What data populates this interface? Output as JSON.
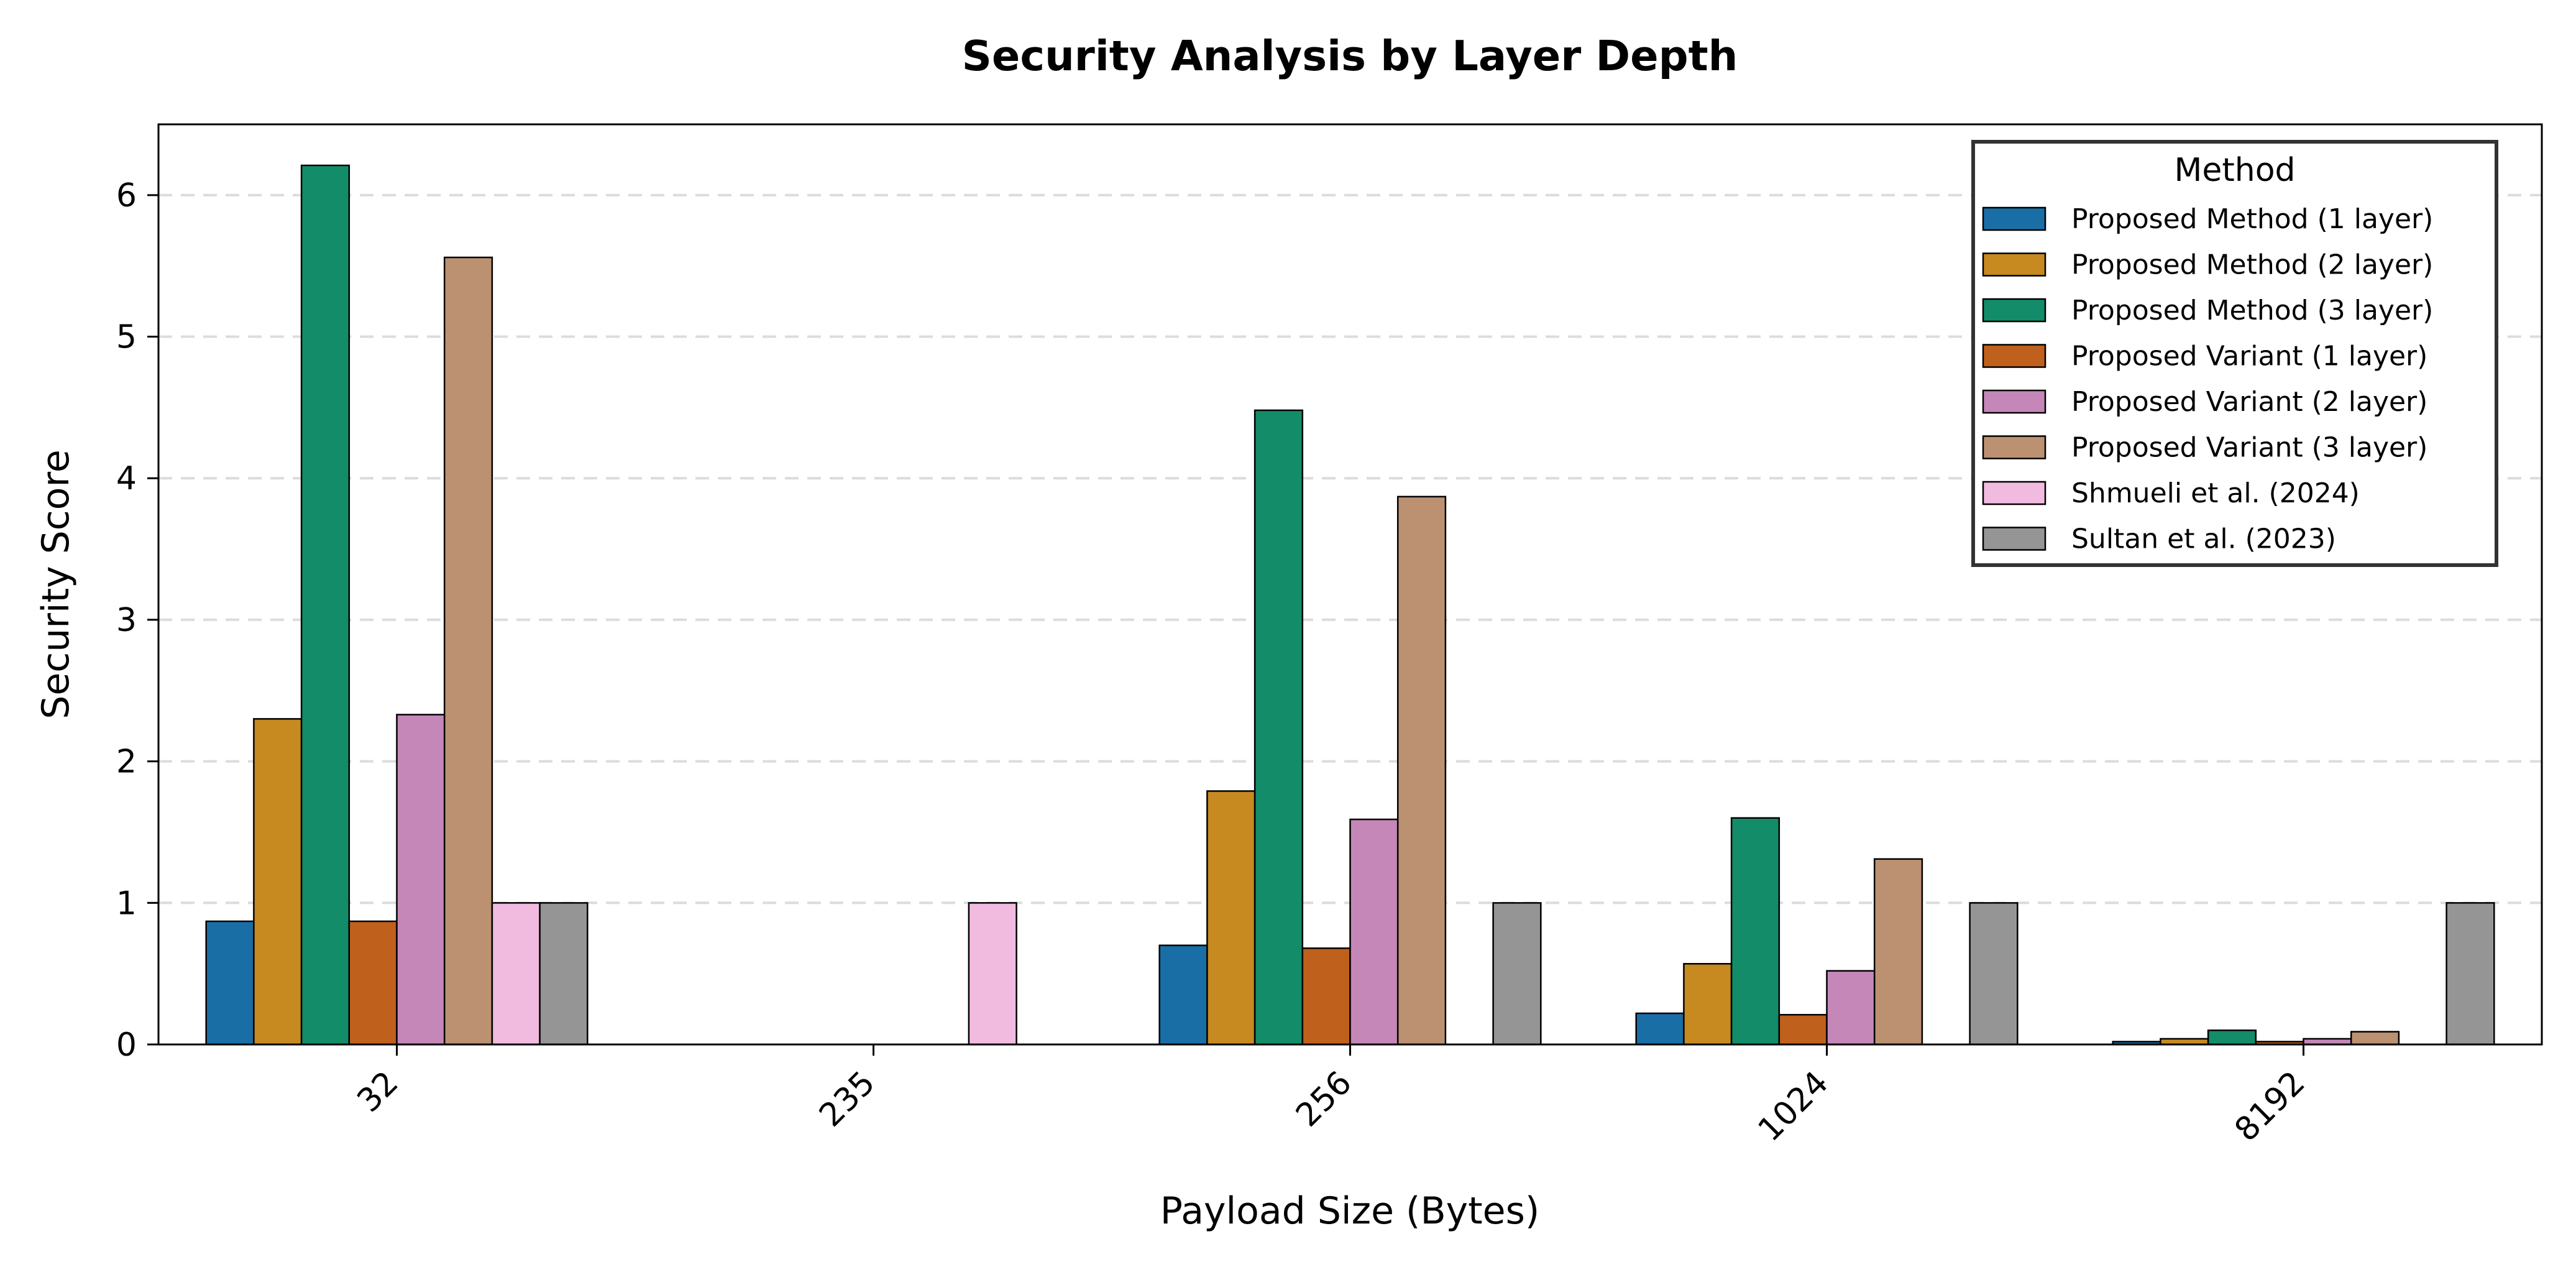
{
  "chart_data": {
    "type": "bar",
    "title": "Security Analysis by Layer Depth",
    "xlabel": "Payload Size (Bytes)",
    "ylabel": "Security Score",
    "categories": [
      "32",
      "235",
      "256",
      "1024",
      "8192"
    ],
    "ylim": [
      0,
      6.5
    ],
    "yticks": [
      "0",
      "1",
      "2",
      "3",
      "4",
      "5",
      "6"
    ],
    "grid": "y-dashed",
    "legend": {
      "title": "Method",
      "placement": "top-right"
    },
    "series": [
      {
        "name": "Proposed Method (1 layer)",
        "color": "#1a6ea6",
        "values": [
          0.87,
          null,
          0.7,
          0.22,
          0.02
        ]
      },
      {
        "name": "Proposed Method (2 layer)",
        "color": "#c68a20",
        "values": [
          2.3,
          null,
          1.79,
          0.57,
          0.04
        ]
      },
      {
        "name": "Proposed Method (3 layer)",
        "color": "#138c6a",
        "values": [
          6.21,
          null,
          4.48,
          1.6,
          0.1
        ]
      },
      {
        "name": "Proposed Variant (1 layer)",
        "color": "#bf601c",
        "values": [
          0.87,
          null,
          0.68,
          0.21,
          0.02
        ]
      },
      {
        "name": "Proposed Variant (2 layer)",
        "color": "#c487b7",
        "values": [
          2.33,
          null,
          1.59,
          0.52,
          0.04
        ]
      },
      {
        "name": "Proposed Variant (3 layer)",
        "color": "#bb9171",
        "values": [
          5.56,
          null,
          3.87,
          1.31,
          0.09
        ]
      },
      {
        "name": "Shmueli et al. (2024)",
        "color": "#f1bbdf",
        "values": [
          1.0,
          1.0,
          null,
          null,
          null
        ]
      },
      {
        "name": "Sultan et al. (2023)",
        "color": "#959595",
        "values": [
          1.0,
          null,
          1.0,
          1.0,
          1.0
        ]
      }
    ]
  }
}
